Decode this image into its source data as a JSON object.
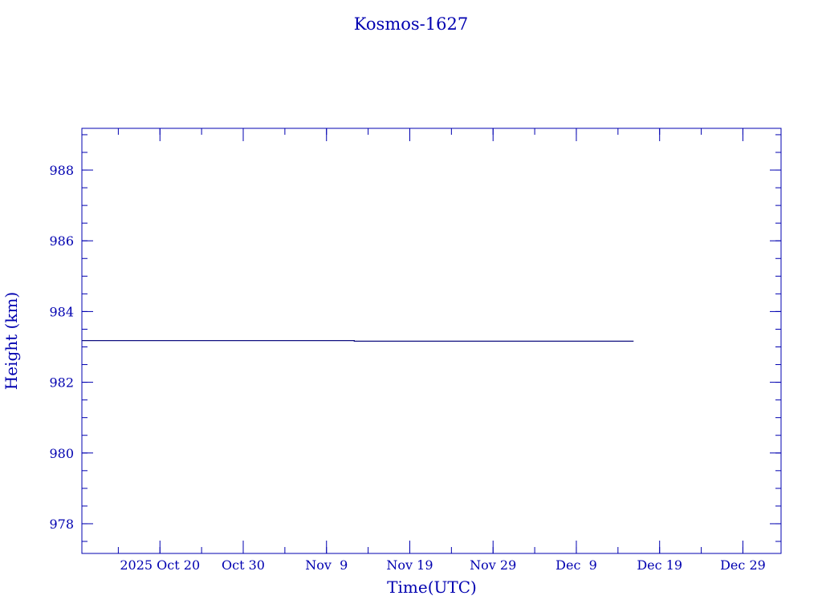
{
  "chart_data": {
    "type": "line",
    "title": "Kosmos-1627",
    "xlabel": "Time(UTC)",
    "ylabel": "Height (km)",
    "xlim": [
      "2025-10-10T15:00",
      "2026-01-02T14:00"
    ],
    "ylim": [
      977.16,
      989.18
    ],
    "x_ticks": [
      {
        "date": "2025-10-20",
        "label": "2025 Oct 20"
      },
      {
        "date": "2025-10-30",
        "label": "Oct 30"
      },
      {
        "date": "2025-11-09",
        "label": "Nov  9"
      },
      {
        "date": "2025-11-19",
        "label": "Nov 19"
      },
      {
        "date": "2025-11-29",
        "label": "Nov 29"
      },
      {
        "date": "2025-12-09",
        "label": "Dec  9"
      },
      {
        "date": "2025-12-19",
        "label": "Dec 19"
      },
      {
        "date": "2025-12-29",
        "label": "Dec 29"
      }
    ],
    "x_minor_tick_days": 5,
    "y_ticks": [
      978,
      980,
      982,
      984,
      986,
      988
    ],
    "y_minor_step": 0.5,
    "grid": false,
    "colors": {
      "text": "#0000b0",
      "axes": "#0000b0",
      "line": "#101080"
    },
    "series": [
      {
        "points": [
          [
            "2025-10-10T15:00",
            983.18
          ],
          [
            "2025-11-12T08:00",
            983.18
          ],
          [
            "2025-11-12T08:00",
            983.16
          ],
          [
            "2025-12-15T21:00",
            983.16
          ]
        ]
      }
    ]
  }
}
